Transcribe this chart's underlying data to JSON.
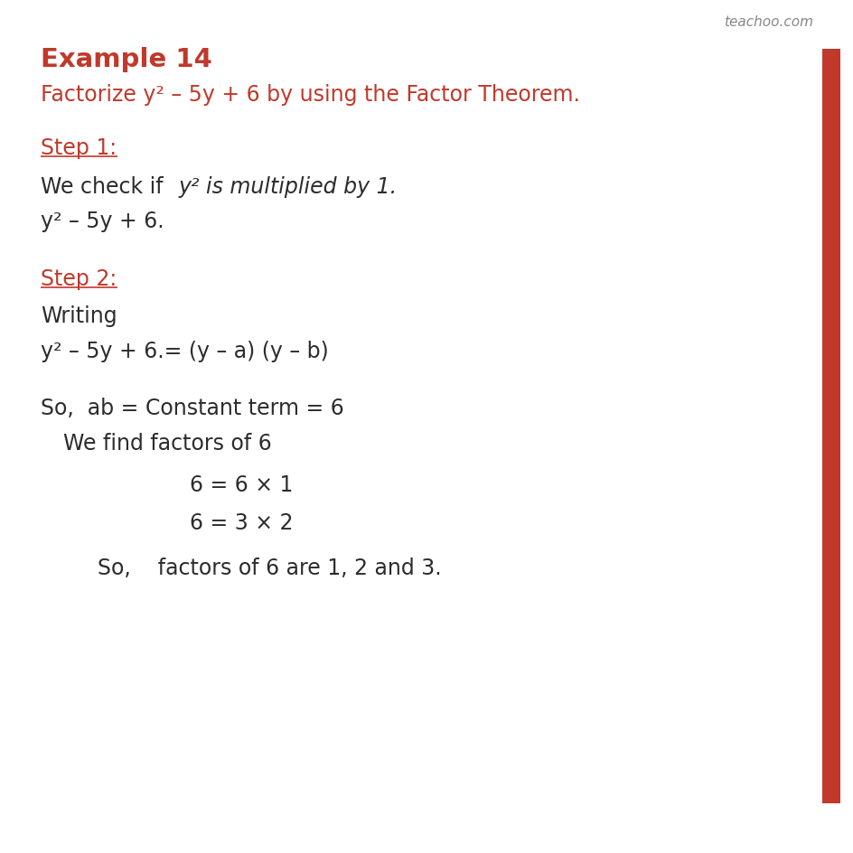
{
  "background_color": "#ffffff",
  "red_color": "#c0392b",
  "black_color": "#2c2c2c",
  "watermark": "teachoo.com",
  "watermark_color": "#888888",
  "red_bar_color": "#c0392b",
  "title": "Example 14",
  "subtitle": "Factorize y² – 5y + 6 by using the Factor Theorem.",
  "step1_label": "Step 1:",
  "step1_line1_normal": "We check if ",
  "step1_line1_italic": "y² is multiplied by 1.",
  "step1_line2": "y² – 5y + 6.",
  "step2_label": "Step 2:",
  "step2_line1": "Writing",
  "step2_line2": "y² – 5y + 6.= (y – a) (y – b)",
  "step2_line3": "So,  ab = Constant term = 6",
  "step2_line4": "We find factors of 6",
  "step2_line5": "6 = 6 × 1",
  "step2_line6": "6 = 3 × 2",
  "step2_line7": "So,    factors of 6 are 1, 2 and 3."
}
